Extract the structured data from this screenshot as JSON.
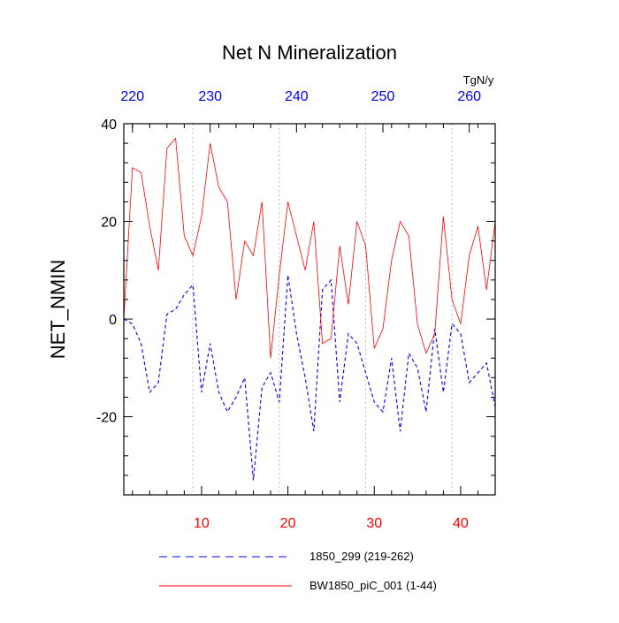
{
  "colors": {
    "bottom_axis": "#ff0000",
    "top_axis": "#0000ff",
    "series_red": "#ff0000",
    "series_blue": "#0000ff",
    "grid": "#bbbbbb",
    "frame": "#000000"
  },
  "chart_data": {
    "type": "line",
    "title": "Net N Mineralization",
    "ylabel": "NET_NMIN",
    "units_label": "TgN/y",
    "xlim": [
      1,
      44
    ],
    "ylim": [
      -36,
      40
    ],
    "x_ticks": [
      10,
      20,
      30,
      40
    ],
    "x_minor_ticks": [
      2,
      4,
      6,
      8,
      12,
      14,
      16,
      18,
      22,
      24,
      26,
      28,
      32,
      34,
      36,
      38,
      42,
      44
    ],
    "top_ticks": [
      {
        "x": 2,
        "label": "220"
      },
      {
        "x": 11,
        "label": "230"
      },
      {
        "x": 21,
        "label": "240"
      },
      {
        "x": 31,
        "label": "250"
      },
      {
        "x": 41,
        "label": "260"
      }
    ],
    "y_ticks": [
      40,
      20,
      0,
      -20
    ],
    "y_tick_labels": [
      "40",
      "20",
      "0",
      "-20"
    ],
    "y_minor_ticks": [
      36,
      32,
      28,
      24,
      16,
      12,
      8,
      4,
      -4,
      -8,
      -12,
      -16,
      -24,
      -28,
      -32
    ],
    "grid_x": [
      9,
      19,
      29,
      39
    ],
    "legend": [
      {
        "label": "1850_299 (219-262)",
        "style": "dashed",
        "series": 0
      },
      {
        "label": "BW1850_piC_001 (1-44)",
        "style": "solid",
        "series": 1
      }
    ],
    "x": [
      1,
      2,
      3,
      4,
      5,
      6,
      7,
      8,
      9,
      10,
      11,
      12,
      13,
      14,
      15,
      16,
      17,
      18,
      19,
      20,
      21,
      22,
      23,
      24,
      25,
      26,
      27,
      28,
      29,
      30,
      31,
      32,
      33,
      34,
      35,
      36,
      37,
      38,
      39,
      40,
      41,
      42,
      43,
      44
    ],
    "series": [
      {
        "name": "1850_299 (219-262)",
        "style": "dashed",
        "values": [
          0,
          -1,
          -5,
          -15,
          -13,
          1,
          2,
          5,
          7,
          -15,
          -5,
          -15,
          -19,
          -16,
          -12,
          -33,
          -14,
          -11,
          -17,
          9,
          -3,
          -12,
          -23,
          6,
          8,
          -17,
          -3,
          -5,
          -11,
          -17,
          -19,
          -8,
          -23,
          -7,
          -10,
          -19,
          -2,
          -15,
          -1,
          -3,
          -13,
          -11,
          -9,
          -18
        ]
      },
      {
        "name": "BW1850_piC_001 (1-44)",
        "style": "solid",
        "values": [
          0,
          31,
          30,
          19,
          10,
          35,
          37,
          17,
          13,
          21,
          36,
          27,
          24,
          4,
          16,
          13,
          24,
          -8,
          9,
          24,
          17,
          10,
          20,
          -5,
          -4,
          15,
          3,
          20,
          15,
          -6,
          -2,
          12,
          20,
          17,
          -1,
          -7,
          -3,
          21,
          4,
          -1,
          13,
          19,
          6,
          20
        ]
      }
    ]
  }
}
